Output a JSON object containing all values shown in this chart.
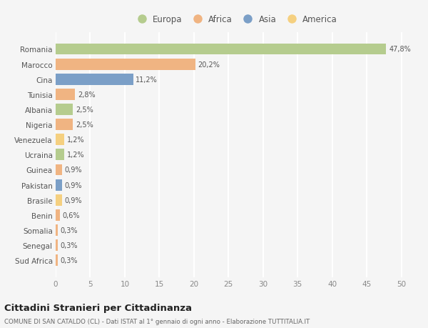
{
  "countries": [
    "Sud Africa",
    "Senegal",
    "Somalia",
    "Benin",
    "Brasile",
    "Pakistan",
    "Guinea",
    "Ucraina",
    "Venezuela",
    "Nigeria",
    "Albania",
    "Tunisia",
    "Cina",
    "Marocco",
    "Romania"
  ],
  "values": [
    0.3,
    0.3,
    0.3,
    0.6,
    0.9,
    0.9,
    0.9,
    1.2,
    1.2,
    2.5,
    2.5,
    2.8,
    11.2,
    20.2,
    47.8
  ],
  "labels": [
    "0,3%",
    "0,3%",
    "0,3%",
    "0,6%",
    "0,9%",
    "0,9%",
    "0,9%",
    "1,2%",
    "1,2%",
    "2,5%",
    "2,5%",
    "2,8%",
    "11,2%",
    "20,2%",
    "47,8%"
  ],
  "bar_colors": [
    "#f0b482",
    "#f0b482",
    "#f0b482",
    "#f0b482",
    "#f5d080",
    "#7b9fc7",
    "#f0b482",
    "#b5cc8e",
    "#f5d080",
    "#f0b482",
    "#b5cc8e",
    "#f0b482",
    "#7b9fc7",
    "#f0b482",
    "#b5cc8e"
  ],
  "xlim": [
    0,
    52
  ],
  "xticks": [
    0,
    5,
    10,
    15,
    20,
    25,
    30,
    35,
    40,
    45,
    50
  ],
  "title": "Cittadini Stranieri per Cittadinanza",
  "subtitle": "COMUNE DI SAN CATALDO (CL) - Dati ISTAT al 1° gennaio di ogni anno - Elaborazione TUTTITALIA.IT",
  "legend_labels": [
    "Europa",
    "Africa",
    "Asia",
    "America"
  ],
  "legend_colors": [
    "#b5cc8e",
    "#f0b482",
    "#7b9fc7",
    "#f5d080"
  ],
  "bg_color": "#f5f5f5",
  "grid_color": "#ffffff"
}
